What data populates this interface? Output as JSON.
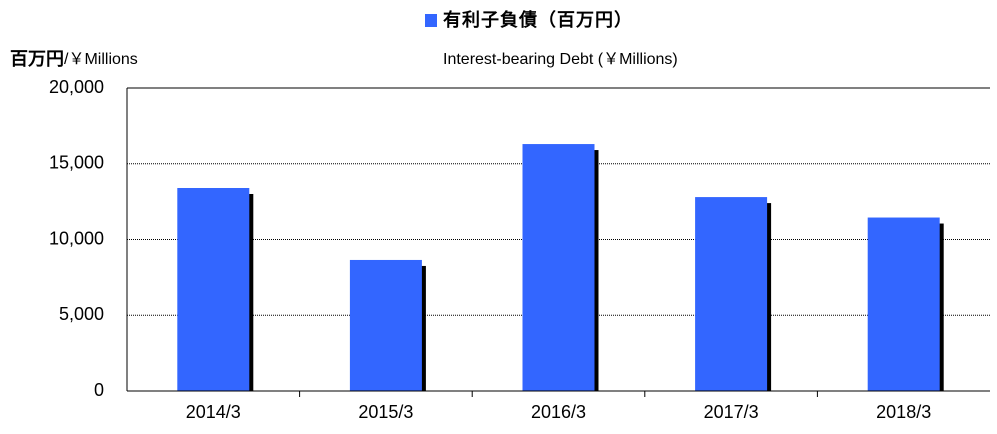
{
  "chart_data": {
    "type": "bar",
    "y_axis_label": {
      "ja": "百万円",
      "en": "/￥Millions"
    },
    "legend_subtitle": "Interest-bearing Debt (￥Millions)",
    "categories": [
      "2014/3",
      "2015/3",
      "2016/3",
      "2017/3",
      "2018/3"
    ],
    "series": [
      {
        "name": "有利子負債（百万円）",
        "color": "#3366ff",
        "values": [
          13400,
          8650,
          16300,
          12800,
          11450
        ]
      }
    ],
    "ylim": [
      0,
      20000
    ],
    "yticks": [
      {
        "value": 0,
        "label": "0"
      },
      {
        "value": 5000,
        "label": "5,000"
      },
      {
        "value": 10000,
        "label": "10,000"
      },
      {
        "value": 15000,
        "label": "15,000"
      },
      {
        "value": 20000,
        "label": "20,000"
      }
    ],
    "grid": true
  }
}
